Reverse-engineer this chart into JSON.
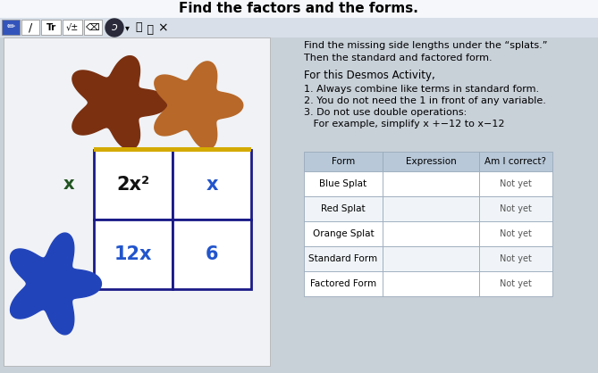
{
  "title": "Find the factors and the forms.",
  "instruction_line1": "Find the missing side lengths under the “splats.”",
  "instruction_line2": "Then the standard and factored form.",
  "desmos_header": "For this Desmos Activity,",
  "rules": [
    "1. Always combine like terms in standard form.",
    "2. You do not need the 1 in front of any variable.",
    "3. Do not use double operations:",
    "   For example, simplify x +−12 to x−12"
  ],
  "grid_text": [
    "2x²",
    "x",
    "12x",
    "6"
  ],
  "grid_text_colors": [
    "#111111",
    "#2255cc",
    "#2255cc",
    "#2255cc"
  ],
  "left_label": "x",
  "left_label_color": "#225522",
  "table_headers": [
    "Form",
    "Expression",
    "Am I correct?"
  ],
  "table_rows": [
    "Blue Splat",
    "Red Splat",
    "Orange Splat",
    "Standard Form",
    "Factored Form"
  ],
  "table_not_yet": "Not yet",
  "bg_color": "#c8d0d8",
  "left_panel_bg": "#f0f2f5",
  "grid_border_color": "#1a1a88",
  "grid_top_border_color": "#d4aa00",
  "table_header_bg": "#b8c8d8",
  "red_splat_color": "#7B3010",
  "orange_splat_color": "#B86828",
  "blue_splat_color": "#2244BB",
  "toolbar_bg": "#d8dfe8",
  "title_bg": "#f5f7fa",
  "btn1_bg": "#3355bb",
  "btn_bg": "#ffffff"
}
